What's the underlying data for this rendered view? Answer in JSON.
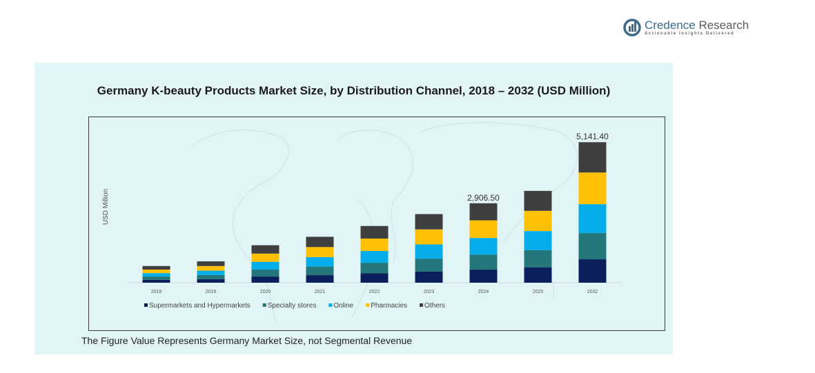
{
  "brand": {
    "name_part1": "Credence",
    "name_part2": " Research",
    "tagline": "Actionable Insights Delivered"
  },
  "footnote": "The Figure Value Represents Germany Market Size, not Segmental Revenue",
  "colors": {
    "Supermarkets and Hypermarkets": "#0b1f5c",
    "Specialty stores": "#23777a",
    "Online": "#05aeea",
    "Pharmacies": "#fec003",
    "Others": "#3f3f3f",
    "panel_bg": "#e2f5f6"
  },
  "chart_data": {
    "type": "bar",
    "stacked": true,
    "title": "Germany K-beauty Products Market Size, by Distribution Channel, 2018 – 2032 (USD Million)",
    "xlabel": "",
    "ylabel": "USD Million",
    "categories": [
      "2018",
      "2019",
      "2020",
      "2021",
      "2022",
      "2023",
      "2024",
      "2025",
      "2032"
    ],
    "series": [
      {
        "name": "Supermarkets and Hypermarkets",
        "values": [
          105,
          130,
          225,
          275,
          340,
          410,
          478,
          555,
          857
        ]
      },
      {
        "name": "Specialty stores",
        "values": [
          120,
          150,
          255,
          315,
          390,
          470,
          552,
          635,
          958
        ]
      },
      {
        "name": "Online",
        "values": [
          125,
          160,
          285,
          345,
          430,
          520,
          607,
          700,
          1058
        ]
      },
      {
        "name": "Pharmacies",
        "values": [
          130,
          170,
          300,
          370,
          455,
          550,
          644,
          740,
          1159
        ]
      },
      {
        "name": "Others",
        "values": [
          130,
          170,
          305,
          375,
          460,
          560,
          625,
          730,
          1109.4
        ]
      }
    ],
    "data_labels": [
      {
        "category": "2024",
        "text": "2,906.50"
      },
      {
        "category": "2032",
        "text": "5,141.40"
      }
    ],
    "ylim": [
      0,
      5400
    ],
    "grid": false,
    "legend": "bottom-left"
  }
}
